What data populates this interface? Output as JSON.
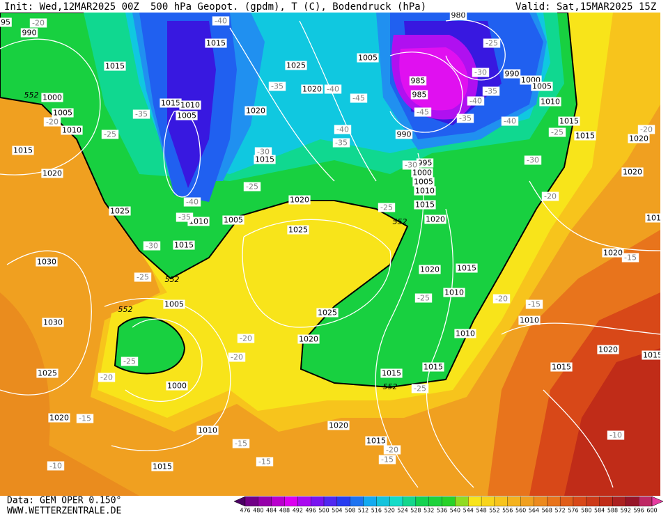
{
  "header": {
    "init": "Init: Wed,12MAR2025 00Z",
    "title": "500 hPa Geopot. (gpdm), T (C), Bodendruck (hPa)",
    "valid": "Valid: Sat,15MAR2025 15Z"
  },
  "map": {
    "pressure_labels": [
      95,
      990,
      1015,
      1000,
      1005,
      1010,
      1015,
      1020,
      1025,
      1015,
      1015,
      1010,
      1005,
      1025,
      1020,
      1020,
      1015,
      1005,
      985,
      985,
      990,
      995,
      1000,
      1005,
      1010,
      1015,
      1020,
      990,
      1000,
      1005,
      1010,
      1015,
      1015,
      1020,
      1020,
      1020,
      1025,
      1010,
      1005,
      1015,
      1030,
      1005,
      1030,
      1025,
      1020,
      1025,
      1000,
      1020,
      1010,
      1015,
      1020,
      1015,
      1015,
      1015,
      1010,
      1010,
      1015,
      1020,
      1020,
      1010,
      1020,
      1015,
      1015,
      1010,
      980
    ],
    "temperature_labels": [
      -20,
      -40,
      -25,
      -30,
      -35,
      -40,
      -45,
      -35,
      -40,
      -25,
      -20,
      -30,
      -20,
      -35,
      -40,
      -45,
      -35,
      -25,
      -20,
      -40,
      -35,
      -30,
      -25,
      -40,
      -35,
      -30,
      -25,
      -30,
      -25,
      -25,
      -20,
      -15,
      -15,
      -20,
      -20,
      -25,
      -20,
      -15,
      -25,
      -20,
      -15,
      -15,
      -15,
      -10,
      -10
    ],
    "contour_552_labels": [
      552,
      552,
      552,
      552,
      552
    ]
  },
  "colorbar": {
    "labels": [
      476,
      480,
      484,
      488,
      492,
      496,
      500,
      504,
      508,
      512,
      516,
      520,
      524,
      528,
      532,
      536,
      540,
      544,
      548,
      552,
      556,
      560,
      564,
      568,
      572,
      576,
      580,
      584,
      588,
      592,
      596,
      600
    ]
  },
  "footer": {
    "source": "Data: GEM OPER 0.150°",
    "website": "WWW.WETTERZENTRALE.DE"
  }
}
